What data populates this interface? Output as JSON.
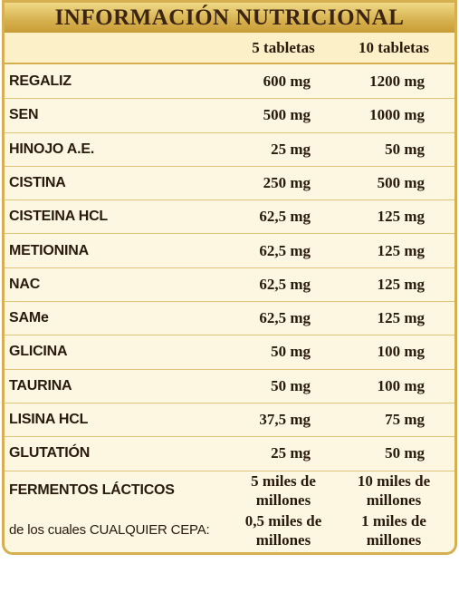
{
  "table": {
    "title": "INFORMACIÓN NUTRICIONAL",
    "columns": [
      "5 tabletas",
      "10 tabletas"
    ],
    "rows": [
      [
        "REGALIZ",
        "600 mg",
        "1200 mg"
      ],
      [
        "SEN",
        "500 mg",
        "1000 mg"
      ],
      [
        "HINOJO A.E.",
        "25 mg",
        "50 mg"
      ],
      [
        "CISTINA",
        "250 mg",
        "500 mg"
      ],
      [
        "CISTEINA HCL",
        "62,5 mg",
        "125 mg"
      ],
      [
        "METIONINA",
        "62,5 mg",
        "125 mg"
      ],
      [
        "NAC",
        "62,5 mg",
        "125 mg"
      ],
      [
        "SAMe",
        "62,5 mg",
        "125 mg"
      ],
      [
        "GLICINA",
        "50 mg",
        "100 mg"
      ],
      [
        "TAURINA",
        "50 mg",
        "100 mg"
      ],
      [
        "LISINA HCL",
        "37,5 mg",
        "75 mg"
      ],
      [
        "GLUTATIÓN",
        "25 mg",
        "50 mg"
      ],
      [
        "FERMENTOS LÁCTICOS",
        "5 miles de\nmillones",
        "10 miles de\nmillones"
      ],
      [
        "de los cuales CUALQUIER CEPA:",
        "0,5 miles de\nmillones",
        "1 miles de\nmillones"
      ]
    ]
  }
}
